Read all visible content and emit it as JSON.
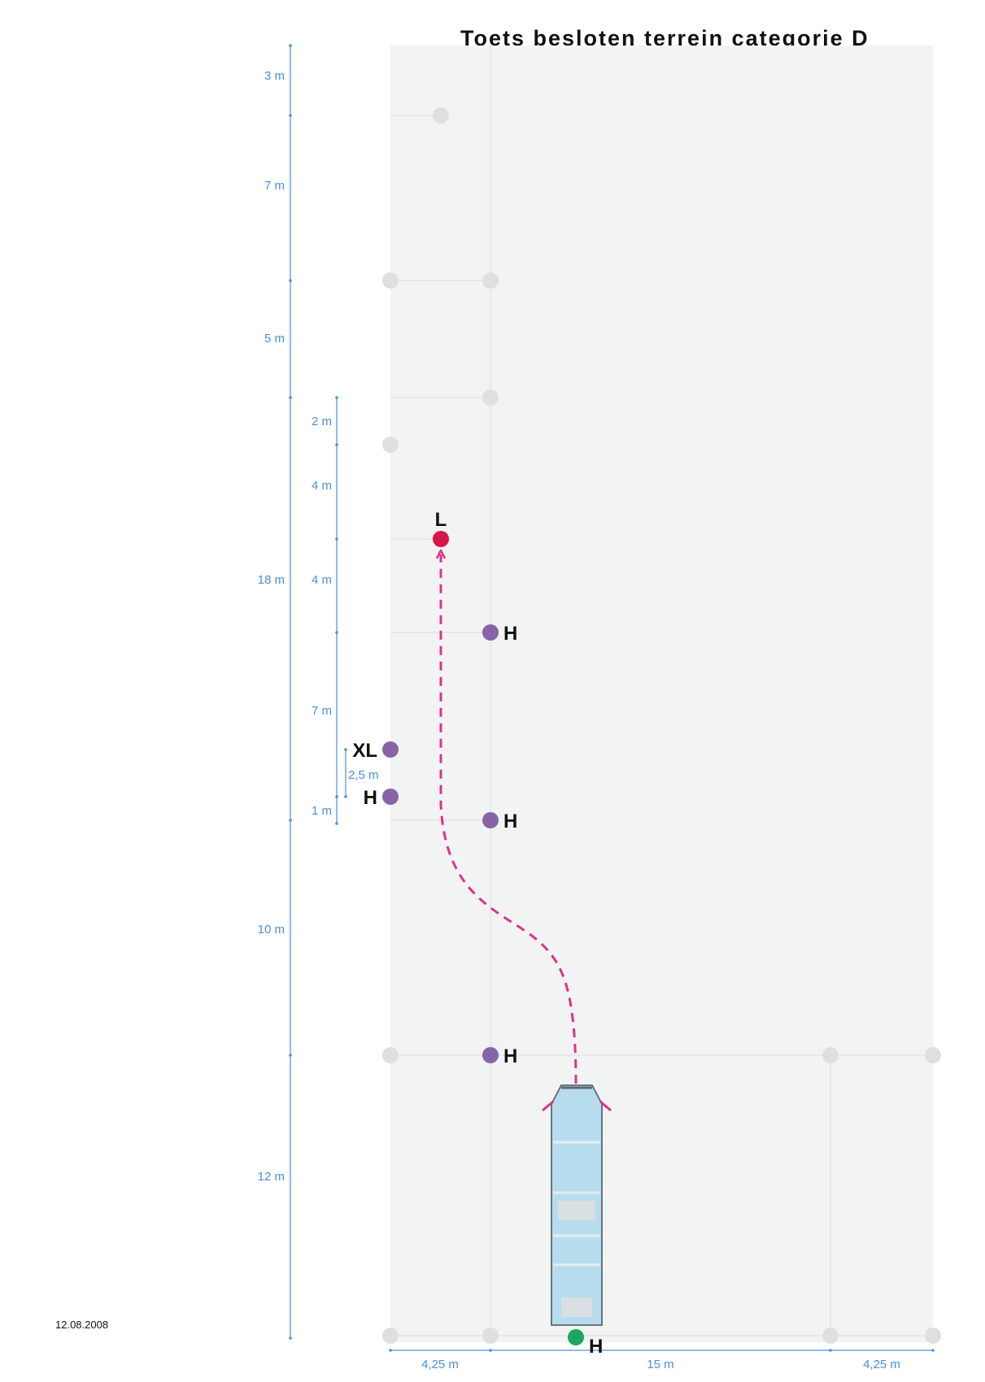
{
  "title": "Toets besloten terrein categorie D",
  "date": "12.08.2008",
  "colors": {
    "area": "#f2f3f3",
    "grid_line": "#e2e4e6",
    "inactive_marker": "#dedfe1",
    "dimension": "#4a90d9",
    "purple_marker": "#8565a8",
    "red_marker": "#d9144a",
    "green_marker": "#1aa860",
    "path": "#e0308a",
    "bus_fill": "#b7dcee",
    "bus_stroke": "#5a6870"
  },
  "vertical_dimensions": {
    "main": [
      "3 m",
      "7 m",
      "5 m",
      "18 m",
      "10 m",
      "12 m"
    ],
    "sub": [
      "2 m",
      "4 m",
      "4 m",
      "7 m",
      "1 m"
    ],
    "offset": "2,5 m"
  },
  "horizontal_dimensions": [
    "4,25 m",
    "15 m",
    "4,25 m"
  ],
  "markers": [
    {
      "label": "L",
      "color": "red"
    },
    {
      "label": "H",
      "color": "purple"
    },
    {
      "label": "XL",
      "color": "purple"
    },
    {
      "label": "H",
      "color": "purple"
    },
    {
      "label": "H",
      "color": "purple"
    },
    {
      "label": "H",
      "color": "purple"
    },
    {
      "label": "H",
      "color": "green"
    }
  ],
  "vehicle": "bus"
}
